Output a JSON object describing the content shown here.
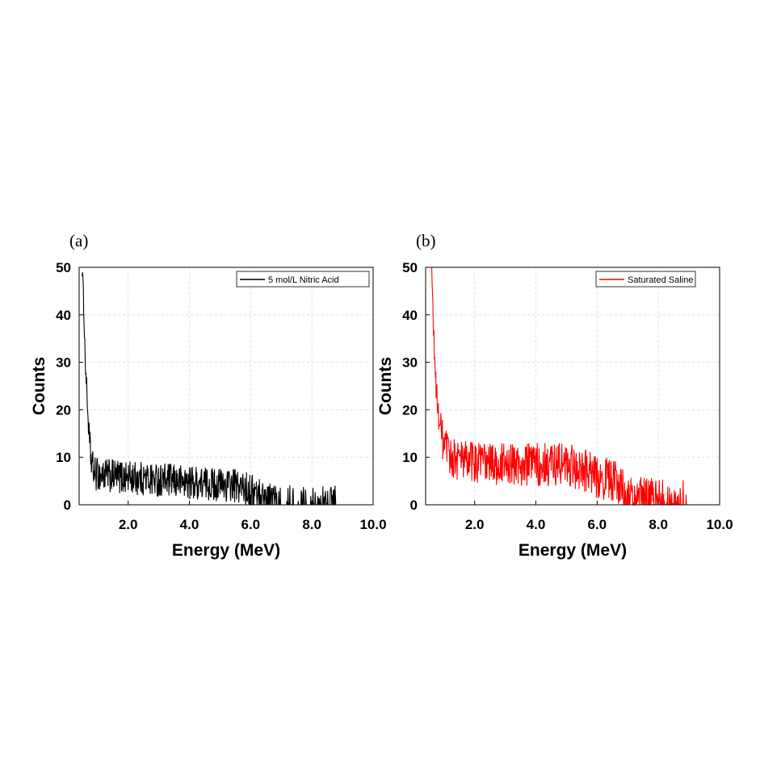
{
  "chart_data": [
    {
      "type": "line",
      "panel_label": "(a)",
      "xlabel": "Energy (MeV)",
      "ylabel": "Counts",
      "xlim": [
        0.4,
        10.0
      ],
      "ylim": [
        0,
        50
      ],
      "xticks": [
        "2.0",
        "4.0",
        "6.0",
        "8.0",
        "10.0"
      ],
      "xtick_values": [
        2,
        4,
        6,
        8,
        10
      ],
      "yticks": [
        "0",
        "10",
        "20",
        "30",
        "40",
        "50"
      ],
      "ytick_values": [
        0,
        10,
        20,
        30,
        40,
        50
      ],
      "grid": true,
      "legend_position": "top-right",
      "series": [
        {
          "name": "5 mol/L Nitric Acid",
          "color": "#000000",
          "profile": [
            [
              0.5,
              50
            ],
            [
              0.55,
              42
            ],
            [
              0.6,
              30
            ],
            [
              0.65,
              24
            ],
            [
              0.7,
              17
            ],
            [
              0.75,
              12
            ],
            [
              0.8,
              9
            ],
            [
              0.9,
              6.5
            ],
            [
              1.5,
              6
            ],
            [
              2.5,
              5.5
            ],
            [
              3.5,
              5
            ],
            [
              4.5,
              4.5
            ],
            [
              5.5,
              4
            ],
            [
              6.0,
              3
            ],
            [
              6.5,
              1.5
            ],
            [
              7.0,
              1
            ],
            [
              8.0,
              0.8
            ],
            [
              8.8,
              0.6
            ]
          ],
          "x_end": 8.8,
          "noise": 3.6
        }
      ]
    },
    {
      "type": "line",
      "panel_label": "(b)",
      "xlabel": "Energy (MeV)",
      "ylabel": "Counts",
      "xlim": [
        0.4,
        10.0
      ],
      "ylim": [
        0,
        50
      ],
      "xticks": [
        "2.0",
        "4.0",
        "6.0",
        "8.0",
        "10.0"
      ],
      "xtick_values": [
        2,
        4,
        6,
        8,
        10
      ],
      "yticks": [
        "0",
        "10",
        "20",
        "30",
        "40",
        "50"
      ],
      "ytick_values": [
        0,
        10,
        20,
        30,
        40,
        50
      ],
      "grid": true,
      "legend_position": "top-right",
      "series": [
        {
          "name": "Saturated Saline",
          "color": "#ff0000",
          "profile": [
            [
              0.6,
              50
            ],
            [
              0.65,
              38
            ],
            [
              0.7,
              30
            ],
            [
              0.75,
              24
            ],
            [
              0.8,
              20
            ],
            [
              0.9,
              15
            ],
            [
              1.0,
              12
            ],
            [
              1.2,
              10
            ],
            [
              2.0,
              9
            ],
            [
              3.0,
              8.5
            ],
            [
              4.0,
              8.5
            ],
            [
              5.0,
              8.5
            ],
            [
              6.0,
              6
            ],
            [
              6.5,
              5
            ],
            [
              6.8,
              4
            ],
            [
              6.9,
              1.5
            ],
            [
              8.0,
              1.2
            ],
            [
              8.8,
              0.8
            ],
            [
              9.0,
              0
            ]
          ],
          "x_end": 9.0,
          "noise": 4.6
        }
      ]
    }
  ]
}
